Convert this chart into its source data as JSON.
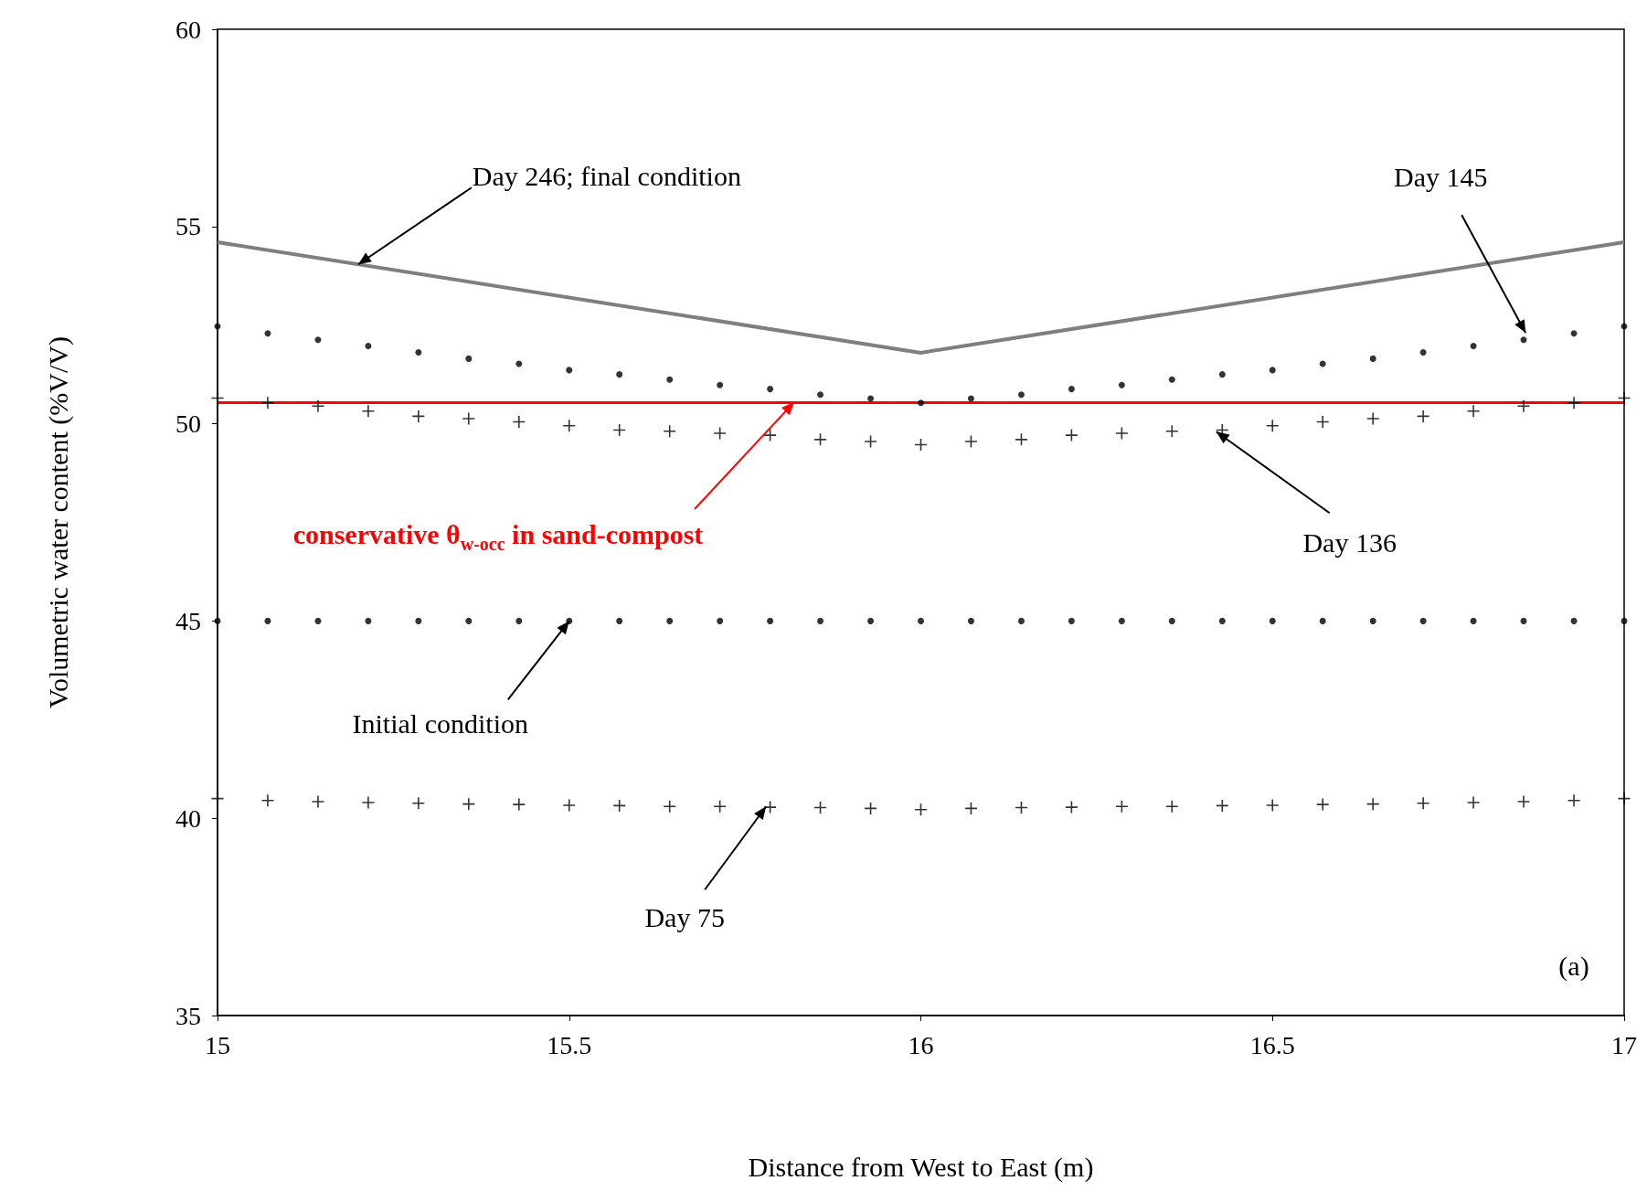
{
  "chart_data": {
    "type": "scatter",
    "xlabel": "Distance from West to East (m)",
    "ylabel": "Volumetric water content (%V/V)",
    "x": [
      15,
      15.0714,
      15.1429,
      15.2143,
      15.2857,
      15.3571,
      15.4286,
      15.5,
      15.5714,
      15.6429,
      15.7143,
      15.7857,
      15.8571,
      15.9286,
      16,
      16.0714,
      16.1429,
      16.2143,
      16.2857,
      16.3571,
      16.4286,
      16.5,
      16.5714,
      16.6429,
      16.7143,
      16.7857,
      16.8571,
      16.9286,
      17
    ],
    "series": [
      {
        "type": "line",
        "x": [
          15,
          16,
          17
        ],
        "values": [
          54.6,
          51.8,
          54.6
        ],
        "color": "#7f7f7f",
        "marker": "none"
      },
      {
        "values": [
          52.47,
          52.29,
          52.13,
          51.97,
          51.81,
          51.65,
          51.52,
          51.36,
          51.25,
          51.12,
          50.98,
          50.88,
          50.74,
          50.64,
          50.53,
          50.64,
          50.74,
          50.88,
          50.98,
          51.12,
          51.25,
          51.36,
          51.52,
          51.65,
          51.81,
          51.97,
          52.13,
          52.29,
          52.47
        ],
        "color": "#000000",
        "marker": "circle"
      },
      {
        "values": [
          50.65,
          50.53,
          50.45,
          50.32,
          50.19,
          50.13,
          50.05,
          49.95,
          49.84,
          49.81,
          49.76,
          49.71,
          49.6,
          49.55,
          49.47,
          49.55,
          49.6,
          49.71,
          49.76,
          49.81,
          49.84,
          49.95,
          50.05,
          50.13,
          50.19,
          50.32,
          50.45,
          50.53,
          50.65
        ],
        "color": "#000000",
        "marker": "cross"
      },
      {
        "values": [
          45,
          45,
          45,
          45,
          45,
          45,
          45,
          45,
          45,
          45,
          45,
          45,
          45,
          45,
          45,
          45,
          45,
          45,
          45,
          45,
          45,
          45,
          45,
          45,
          45,
          45,
          45,
          45,
          45
        ],
        "color": "#000000",
        "marker": "circle"
      },
      {
        "values": [
          40.5,
          40.45,
          40.42,
          40.4,
          40.38,
          40.36,
          40.35,
          40.33,
          40.32,
          40.3,
          40.3,
          40.28,
          40.27,
          40.25,
          40.22,
          40.25,
          40.27,
          40.28,
          40.3,
          40.3,
          40.32,
          40.33,
          40.35,
          40.36,
          40.38,
          40.4,
          40.42,
          40.45,
          40.5
        ],
        "color": "#000000",
        "marker": "cross"
      }
    ],
    "xlim": [
      15,
      17
    ],
    "xticks": [
      15,
      15.5,
      16,
      16.5,
      17
    ],
    "ylim": [
      35,
      60
    ],
    "yticks": [
      35,
      40,
      45,
      50,
      55,
      60
    ],
    "ref_lines": [
      {
        "axis": "y",
        "value": 50.55,
        "label": "conservative θ$_{w-occ}$ in sand-compost",
        "color": "#ff0000"
      }
    ],
    "annotations": [
      {
        "text": "Day 246; final condition",
        "x": 15.2,
        "y": 54.04
      },
      {
        "text": "Day 145",
        "x": 16.86,
        "y": 52.3
      },
      {
        "text": "Day 136",
        "x": 16.42,
        "y": 49.8
      },
      {
        "text": "Initial condition",
        "x": 15.5,
        "y": 45
      },
      {
        "text": "Day 75",
        "x": 15.78,
        "y": 40.3
      },
      "(a)"
    ],
    "line_style": "solid"
  }
}
